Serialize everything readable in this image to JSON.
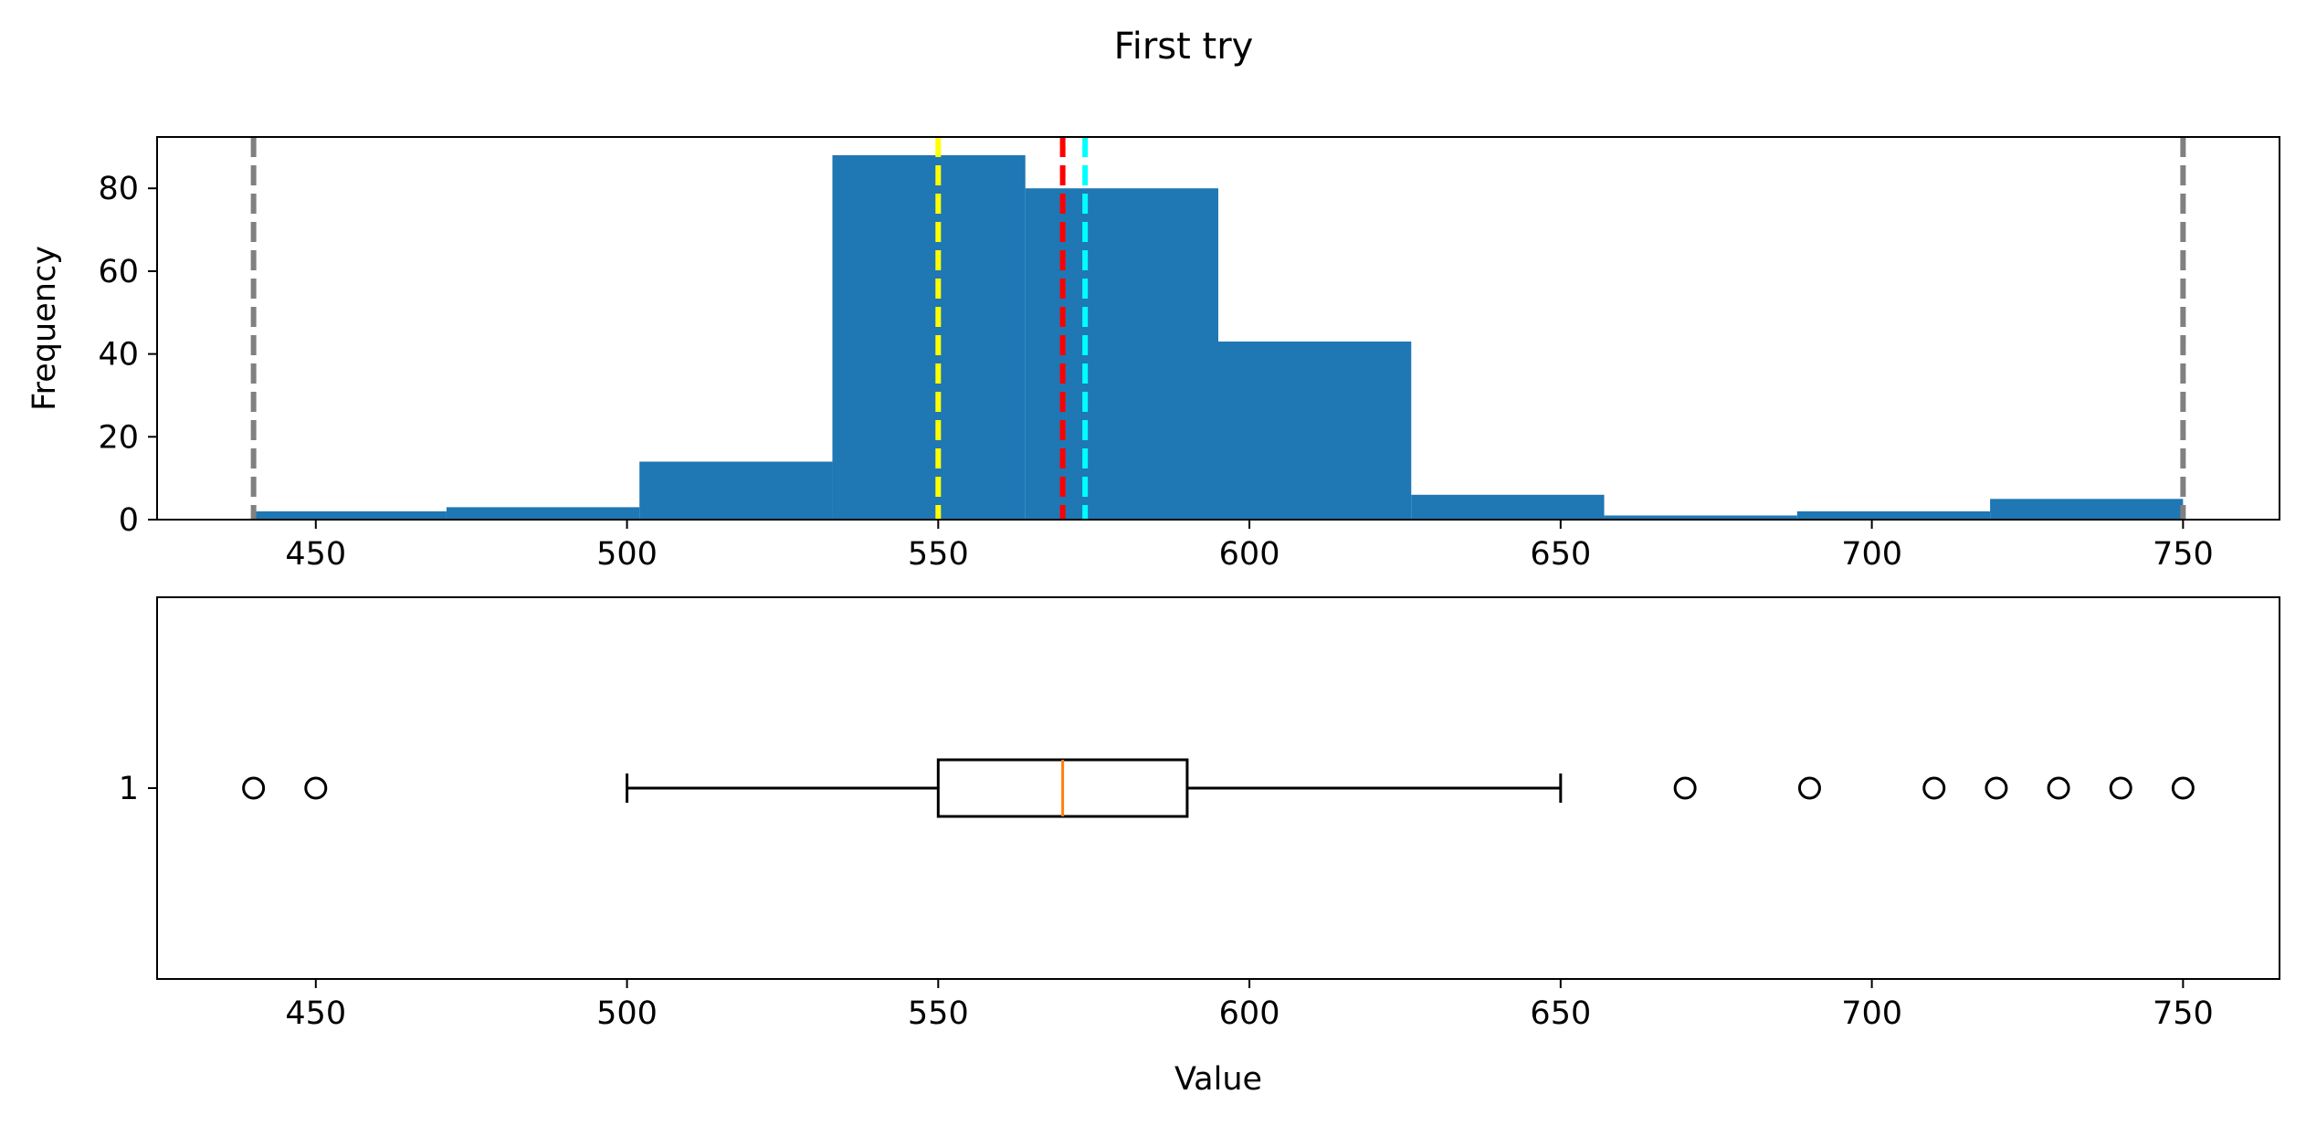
{
  "title": "First try",
  "colors": {
    "bar": "#1f77b4",
    "median_line_box": "#ff7f0e",
    "vline_extremes": "#808080",
    "vline_mode": "#ffff00",
    "vline_median": "#ff0000",
    "vline_mean": "#00ffff"
  },
  "chart_data": [
    {
      "type": "histogram",
      "ylabel": "Frequency",
      "xlabel": "",
      "xlim": [
        424.5,
        765.5
      ],
      "ylim": [
        0,
        92.4
      ],
      "x_ticks": [
        450,
        500,
        550,
        600,
        650,
        700,
        750
      ],
      "y_ticks": [
        0,
        20,
        40,
        60,
        80
      ],
      "bins": [
        {
          "x0": 440,
          "x1": 471,
          "count": 2
        },
        {
          "x0": 471,
          "x1": 502,
          "count": 3
        },
        {
          "x0": 502,
          "x1": 533,
          "count": 14
        },
        {
          "x0": 533,
          "x1": 564,
          "count": 88
        },
        {
          "x0": 564,
          "x1": 595,
          "count": 80
        },
        {
          "x0": 595,
          "x1": 626,
          "count": 43
        },
        {
          "x0": 626,
          "x1": 657,
          "count": 6
        },
        {
          "x0": 657,
          "x1": 688,
          "count": 1
        },
        {
          "x0": 688,
          "x1": 719,
          "count": 2
        },
        {
          "x0": 719,
          "x1": 750,
          "count": 5
        }
      ],
      "vertical_lines": [
        {
          "x": 440,
          "color": "#808080",
          "style": "dashed"
        },
        {
          "x": 750,
          "color": "#808080",
          "style": "dashed"
        },
        {
          "x": 550,
          "color": "#ffff00",
          "style": "dashed"
        },
        {
          "x": 570,
          "color": "#ff0000",
          "style": "dashed"
        },
        {
          "x": 573.6,
          "color": "#00ffff",
          "style": "dashed"
        }
      ],
      "grid": false
    },
    {
      "type": "boxplot",
      "orientation": "horizontal",
      "xlabel": "Value",
      "ylabel": "",
      "xlim": [
        424.5,
        765.5
      ],
      "x_ticks": [
        450,
        500,
        550,
        600,
        650,
        700,
        750
      ],
      "y_tick_labels": [
        "1"
      ],
      "box": {
        "whisker_low": 500,
        "q1": 550,
        "median": 570,
        "q3": 590,
        "whisker_high": 650
      },
      "outliers": [
        440,
        450,
        670,
        690,
        710,
        720,
        730,
        740,
        750
      ],
      "grid": false
    }
  ]
}
